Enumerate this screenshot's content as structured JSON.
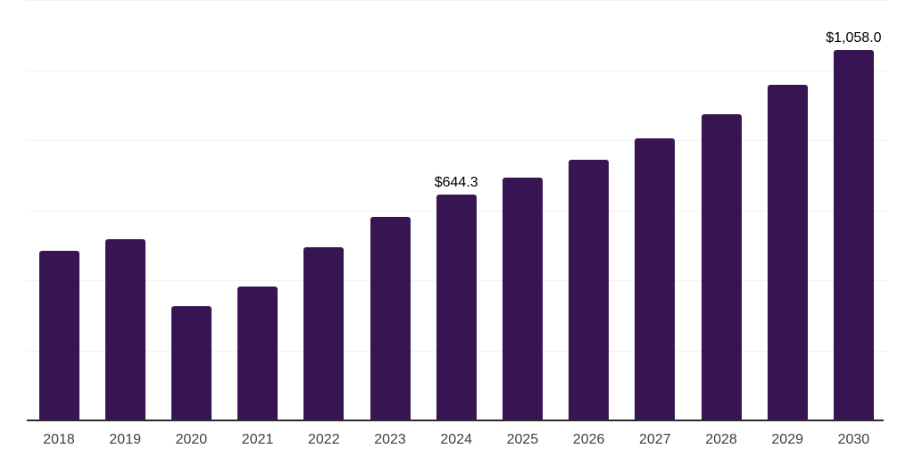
{
  "chart_data": {
    "type": "bar",
    "title": "",
    "xlabel": "",
    "ylabel": "",
    "categories": [
      "2018",
      "2019",
      "2020",
      "2021",
      "2022",
      "2023",
      "2024",
      "2025",
      "2026",
      "2027",
      "2028",
      "2029",
      "2030"
    ],
    "values": [
      483,
      516,
      325,
      381,
      493,
      582,
      644.3,
      692,
      745,
      806,
      875,
      959,
      1058
    ],
    "data_labels": [
      "",
      "",
      "",
      "",
      "",
      "",
      "$644.3",
      "",
      "",
      "",
      "",
      "",
      "$1,058.0"
    ],
    "ylim": [
      0,
      1200
    ],
    "grid_step": 200,
    "grid": "horizontal",
    "y_tick_labels_shown": false,
    "legend": "none",
    "colors": {
      "bar": "#371452",
      "axis_line": "#2B2B2B",
      "gridline": "#F2F2F2",
      "tick_label": "#3F3F3F",
      "data_label": "#000000",
      "background": "#FFFFFF"
    }
  }
}
